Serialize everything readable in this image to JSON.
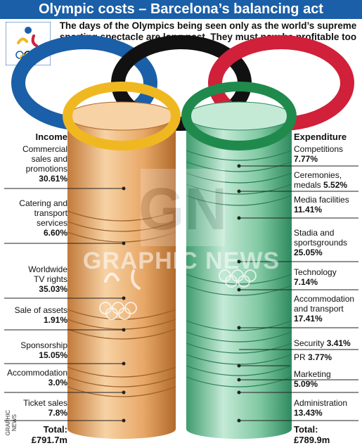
{
  "title": "Olympic costs – Barcelona’s balancing act",
  "subtitle": "The days of the Olympics being seen only as the world’s supreme sporting spectacle are long past. They must now be profitable too",
  "credit": "GRAPHIC NEWS",
  "watermark": {
    "mark": "GN",
    "text": "GRAPHIC NEWS"
  },
  "colors": {
    "header": "#1a5fa8",
    "ring_blue": "#1a5fa8",
    "ring_black": "#111111",
    "ring_red": "#d0203a",
    "ring_yellow": "#f0b820",
    "ring_green": "#1f8a4c",
    "income_column": "#e8a868",
    "expenditure_column": "#7fc8a2"
  },
  "chart_data": [
    {
      "type": "bar",
      "title": "Income",
      "unit": "%",
      "categories": [
        "Commercial sales and promotions",
        "Catering and transport services",
        "Worldwide TV rights",
        "Sale of assets",
        "Sponsorship",
        "Accommodation",
        "Ticket sales"
      ],
      "labels": [
        [
          "Commercial",
          "sales and",
          "promotions"
        ],
        [
          "Catering and",
          "transport",
          "services"
        ],
        [
          "Worldwide",
          "TV rights"
        ],
        [
          "Sale of assets"
        ],
        [
          "Sponsorship"
        ],
        [
          "Accommodation"
        ],
        [
          "Ticket sales"
        ]
      ],
      "values": [
        30.61,
        6.6,
        35.03,
        1.91,
        15.05,
        3.0,
        7.8
      ],
      "value_labels": [
        "30.61%",
        "6.60%",
        "35.03%",
        "1.91%",
        "15.05%",
        "3.0%",
        "7.8%"
      ],
      "total_label": "Total:",
      "total": "£791.7m"
    },
    {
      "type": "bar",
      "title": "Expenditure",
      "unit": "%",
      "categories": [
        "Competitions",
        "Ceremonies, medals",
        "Media facilities",
        "Stadia and sportsgrounds",
        "Technology",
        "Accommodation and transport",
        "Security",
        "PR",
        "Marketing",
        "Administration"
      ],
      "labels": [
        [
          "Competitions"
        ],
        [
          "Ceremonies,",
          "medals"
        ],
        [
          "Media facilities"
        ],
        [
          "Stadia and",
          "sportsgrounds"
        ],
        [
          "Technology"
        ],
        [
          "Accommodation",
          "and transport"
        ],
        [
          "Security"
        ],
        [
          "PR"
        ],
        [
          "Marketing"
        ],
        [
          "Administration"
        ]
      ],
      "values": [
        7.77,
        5.52,
        11.41,
        25.05,
        7.14,
        17.41,
        3.41,
        3.77,
        5.09,
        13.43
      ],
      "value_labels": [
        "7.77%",
        "5.52%",
        "11.41%",
        "25.05%",
        "7.14%",
        "17.41%",
        "3.41%",
        "3.77%",
        "5.09%",
        "13.43%"
      ],
      "inline_value": [
        false,
        true,
        false,
        false,
        false,
        false,
        true,
        true,
        false,
        false
      ],
      "total_label": "Total:",
      "total": "£789.9m"
    }
  ]
}
